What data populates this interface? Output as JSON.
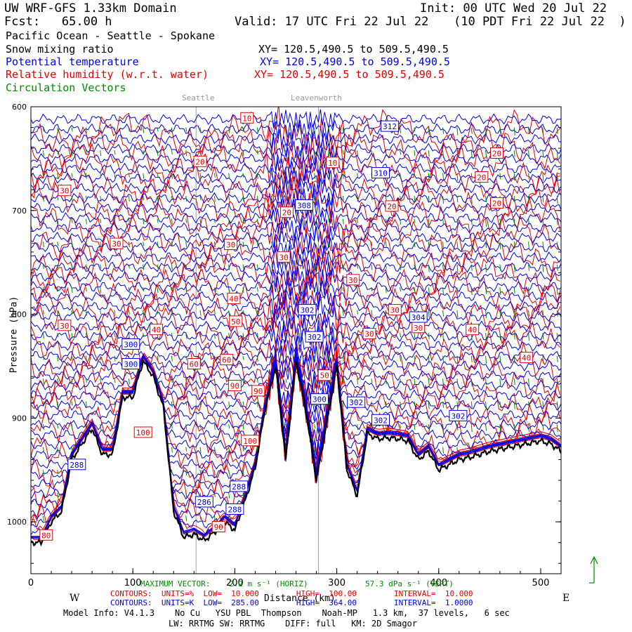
{
  "header": {
    "model": "UW WRF-GFS 1.33km Domain",
    "init": "Init: 00 UTC Wed 20 Jul 22",
    "fcst": "Fcst:   65.00 h",
    "valid": "Valid: 17 UTC Fri 22 Jul 22",
    "valid_local": "(10 PDT Fri 22 Jul 22  )",
    "region": "Pacific Ocean - Seattle - Spokane",
    "fields": [
      {
        "name": "Snow mixing ratio",
        "xy": "XY= 120.5,490.5 to 509.5,490.5",
        "color": "#000000"
      },
      {
        "name": "Potential temperature",
        "xy": "XY= 120.5,490.5 to 509.5,490.5",
        "color": "#0000e6"
      },
      {
        "name": "Relative humidity (w.r.t. water)",
        "xy": "XY= 120.5,490.5 to 509.5,490.5",
        "color": "#e60000"
      },
      {
        "name": "Circulation Vectors",
        "xy": "",
        "color": "#008c00"
      }
    ]
  },
  "chart_data": {
    "type": "cross-section",
    "xlabel": "Distance (km)",
    "ylabel": "Pressure (hPa)",
    "xlim": [
      0,
      520
    ],
    "ylim": [
      1050,
      600
    ],
    "x_ticks": [
      0,
      100,
      200,
      300,
      400,
      500
    ],
    "y_ticks": [
      600,
      700,
      800,
      900,
      1000
    ],
    "y_tick_labels": [
      "600",
      "700",
      "800",
      "900",
      "1000"
    ],
    "x_end_labels": {
      "left": "W",
      "right": "E"
    },
    "locations": [
      {
        "name": "Seattle",
        "x_km": 162
      },
      {
        "name": "Leavenworth",
        "x_km": 282
      }
    ],
    "terrain_pressure_hpa": {
      "x_km": [
        0,
        10,
        20,
        30,
        40,
        50,
        60,
        70,
        80,
        90,
        100,
        110,
        120,
        130,
        140,
        150,
        160,
        170,
        180,
        190,
        200,
        210,
        220,
        230,
        240,
        250,
        260,
        270,
        280,
        290,
        300,
        310,
        320,
        330,
        340,
        350,
        360,
        370,
        380,
        390,
        400,
        410,
        420,
        430,
        440,
        450,
        460,
        470,
        480,
        490,
        500,
        510,
        520
      ],
      "pressure": [
        1020,
        1020,
        1000,
        990,
        940,
        925,
        910,
        935,
        935,
        880,
        880,
        845,
        860,
        890,
        990,
        1015,
        1012,
        1018,
        1010,
        1000,
        1008,
        980,
        948,
        890,
        850,
        940,
        845,
        895,
        960,
        905,
        850,
        950,
        975,
        915,
        920,
        919,
        920,
        922,
        940,
        932,
        950,
        945,
        940,
        938,
        935,
        932,
        930,
        928,
        926,
        924,
        922,
        925,
        932
      ]
    },
    "potential_temperature_contours": {
      "units": "K",
      "low": "285.00",
      "high": "364.00",
      "interval": "1.0000",
      "labels": [
        {
          "value": "312",
          "x_km": 352,
          "p": 619
        },
        {
          "value": "310",
          "x_km": 343,
          "p": 664
        },
        {
          "value": "308",
          "x_km": 268,
          "p": 695
        },
        {
          "value": "304",
          "x_km": 380,
          "p": 803
        },
        {
          "value": "302",
          "x_km": 271,
          "p": 796
        },
        {
          "value": "302",
          "x_km": 278,
          "p": 822
        },
        {
          "value": "300",
          "x_km": 98,
          "p": 829
        },
        {
          "value": "300",
          "x_km": 98,
          "p": 848
        },
        {
          "value": "300",
          "x_km": 283,
          "p": 882
        },
        {
          "value": "302",
          "x_km": 319,
          "p": 885
        },
        {
          "value": "302",
          "x_km": 343,
          "p": 902
        },
        {
          "value": "302",
          "x_km": 419,
          "p": 898
        },
        {
          "value": "288",
          "x_km": 45,
          "p": 945
        },
        {
          "value": "288",
          "x_km": 204,
          "p": 966
        },
        {
          "value": "286",
          "x_km": 170,
          "p": 981
        },
        {
          "value": "288",
          "x_km": 200,
          "p": 988
        }
      ]
    },
    "relative_humidity_contours": {
      "units": "%",
      "low": "10.000",
      "high": "100.00",
      "interval": "10.000",
      "labels": [
        {
          "value": "10",
          "x_km": 212,
          "p": 611
        },
        {
          "value": "20",
          "x_km": 166,
          "p": 653
        },
        {
          "value": "10",
          "x_km": 296,
          "p": 654
        },
        {
          "value": "30",
          "x_km": 33,
          "p": 681
        },
        {
          "value": "20",
          "x_km": 457,
          "p": 645
        },
        {
          "value": "20",
          "x_km": 442,
          "p": 668
        },
        {
          "value": "20",
          "x_km": 457,
          "p": 693
        },
        {
          "value": "20",
          "x_km": 354,
          "p": 696
        },
        {
          "value": "20",
          "x_km": 251,
          "p": 702
        },
        {
          "value": "30",
          "x_km": 84,
          "p": 732
        },
        {
          "value": "30",
          "x_km": 196,
          "p": 733
        },
        {
          "value": "30",
          "x_km": 248,
          "p": 745
        },
        {
          "value": "30",
          "x_km": 316,
          "p": 767
        },
        {
          "value": "40",
          "x_km": 199,
          "p": 785
        },
        {
          "value": "30",
          "x_km": 357,
          "p": 796
        },
        {
          "value": "30",
          "x_km": 380,
          "p": 813
        },
        {
          "value": "30",
          "x_km": 33,
          "p": 811
        },
        {
          "value": "40",
          "x_km": 123,
          "p": 815
        },
        {
          "value": "50",
          "x_km": 201,
          "p": 807
        },
        {
          "value": "40",
          "x_km": 433,
          "p": 815
        },
        {
          "value": "30",
          "x_km": 332,
          "p": 819
        },
        {
          "value": "40",
          "x_km": 486,
          "p": 842
        },
        {
          "value": "60",
          "x_km": 160,
          "p": 848
        },
        {
          "value": "60",
          "x_km": 192,
          "p": 844
        },
        {
          "value": "50",
          "x_km": 288,
          "p": 859
        },
        {
          "value": "90",
          "x_km": 200,
          "p": 869
        },
        {
          "value": "90",
          "x_km": 223,
          "p": 874
        },
        {
          "value": "100",
          "x_km": 110,
          "p": 914
        },
        {
          "value": "100",
          "x_km": 215,
          "p": 922
        },
        {
          "value": "90",
          "x_km": 184,
          "p": 1005
        },
        {
          "value": "80",
          "x_km": 15,
          "p": 1013
        }
      ]
    }
  },
  "footer": {
    "max_vector_label": "MAXIMUM VECTOR:",
    "max_vector_horiz": "2.2 m s⁻¹ (HORIZ)",
    "max_vector_vert": "57.3 dPa s⁻¹ (VERT)",
    "rh_contour_line": "CONTOURS:  UNITS=%  LOW=  10.000        HIGH=  100.00        INTERVAL=  10.000",
    "theta_contour_line": "CONTOURS:  UNITS=K  LOW=  285.00        HIGH=  364.00        INTERVAL=  1.0000",
    "model_info": "Model Info: V4.1.3    No Cu   YSU PBL  Thompson    Noah-MP   1.3 km,  37 levels,   6 sec",
    "model_info2": "LW: RRTMG SW: RRTMG    DIFF: full   KM: 2D Smagor"
  },
  "colors": {
    "theta": "#0000e6",
    "rh": "#e60000",
    "vectors": "#008c00",
    "terrain": "#000000",
    "location_lines": "#a0a0a0"
  },
  "icons": {
    "vector_key": "up-arrow-icon"
  }
}
